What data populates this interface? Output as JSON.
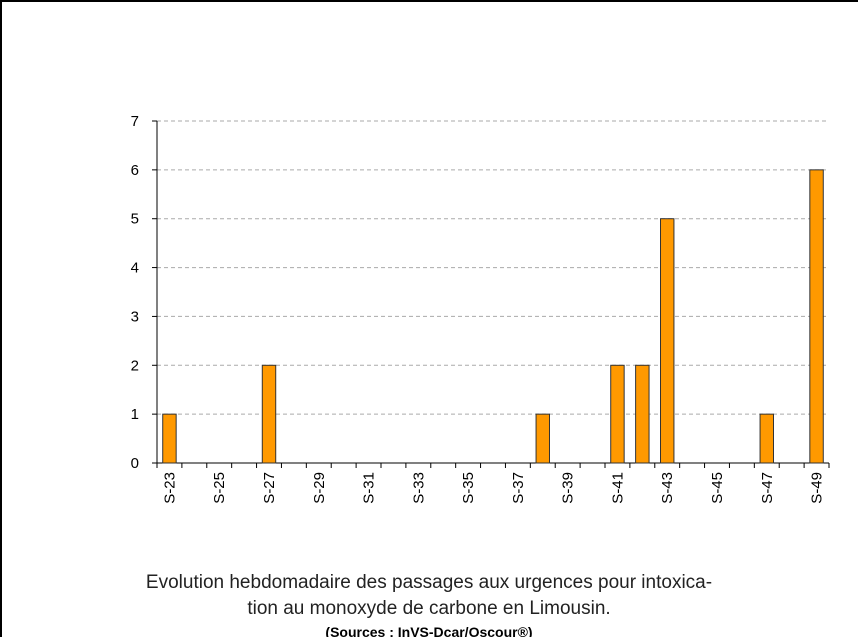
{
  "chart_data": {
    "type": "bar",
    "categories": [
      "S-23",
      null,
      "S-25",
      null,
      "S-27",
      null,
      "S-29",
      null,
      "S-31",
      null,
      "S-33",
      null,
      "S-35",
      null,
      "S-37",
      null,
      "S-39",
      null,
      "S-41",
      null,
      "S-43",
      null,
      "S-45",
      null,
      "S-47",
      null,
      "S-49"
    ],
    "values": [
      1,
      0,
      0,
      0,
      2,
      0,
      0,
      0,
      0,
      0,
      0,
      0,
      0,
      0,
      0,
      1,
      0,
      0,
      2,
      2,
      5,
      0,
      0,
      0,
      1,
      0,
      6
    ],
    "color": "#ff9900",
    "ylim": [
      0,
      7
    ],
    "yticks": [
      0,
      1,
      2,
      3,
      4,
      5,
      6,
      7
    ],
    "grid": true,
    "caption": [
      "Evolution hebdomadaire des passages aux urgences pour intoxica-",
      "tion au monoxyde de carbone en Limousin."
    ],
    "source": "(Sources : InVS-Dcar/Oscour®)"
  }
}
